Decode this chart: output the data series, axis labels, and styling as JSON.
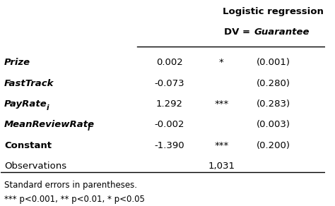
{
  "title_line1": "Logistic regression",
  "title_line2": "DV = ",
  "title_italic": "Guarantee",
  "header_line": "Logistic regression\nDV = Guarantee",
  "rows": [
    {
      "label": "Prize",
      "label_italic": true,
      "label_subscript": false,
      "coef": "0.002",
      "sig": "*",
      "se": "(0.001)"
    },
    {
      "label": "FastTrack",
      "label_italic": true,
      "label_subscript": false,
      "coef": "-0.073",
      "sig": "",
      "se": "(0.280)"
    },
    {
      "label": "PayRate",
      "label_italic": true,
      "label_subscript": true,
      "coef": "1.292",
      "sig": "***",
      "se": "(0.283)"
    },
    {
      "label": "MeanReviewRate",
      "label_italic": true,
      "label_subscript": true,
      "coef": "-0.002",
      "sig": "",
      "se": "(0.003)"
    },
    {
      "label": "Constant",
      "label_italic": false,
      "label_subscript": false,
      "coef": "-1.390",
      "sig": "***",
      "se": "(0.200)"
    },
    {
      "label": "Observations",
      "label_italic": false,
      "label_subscript": false,
      "coef": "",
      "sig": "1,031",
      "se": ""
    }
  ],
  "footnote1": "Standard errors in parentheses.",
  "footnote2": "*** p<0.001, ** p<0.01, * p<0.05",
  "bg_color": "#ffffff",
  "text_color": "#000000"
}
